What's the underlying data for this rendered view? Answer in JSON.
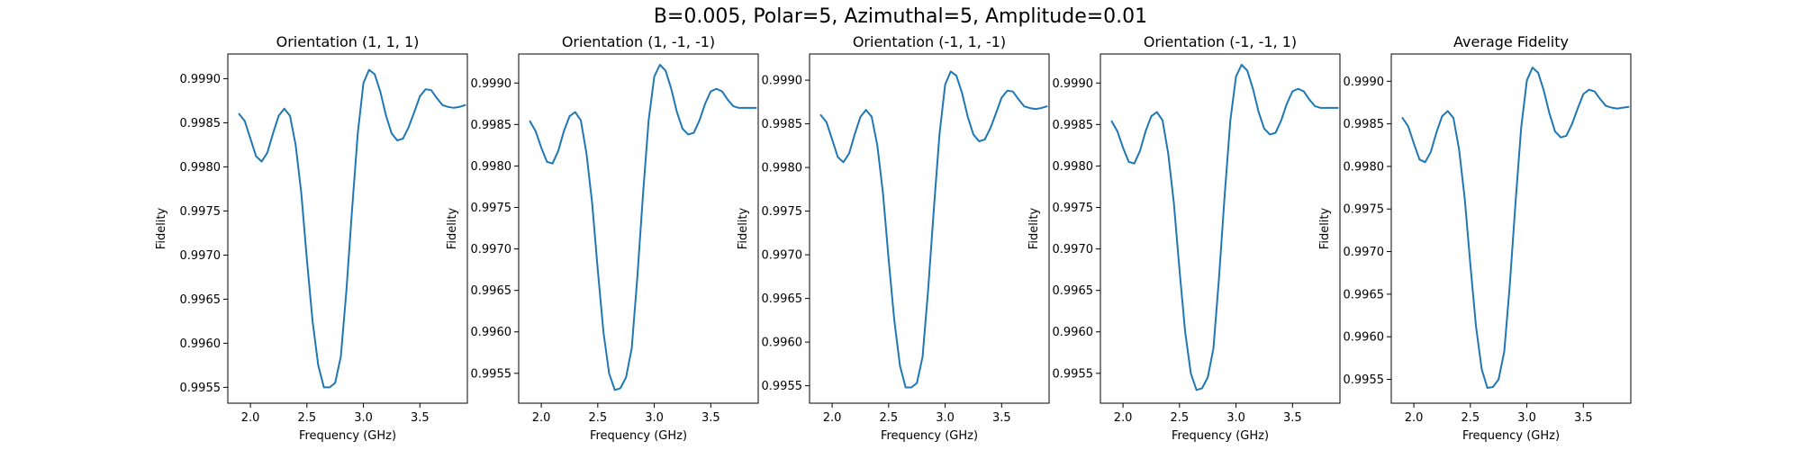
{
  "figure": {
    "suptitle": "B=0.005, Polar=5, Azimuthal=5, Amplitude=0.01",
    "line_color": "#1f77b4"
  },
  "chart_data": [
    {
      "type": "line",
      "title": "Orientation (1, 1, 1)",
      "xlabel": "Frequency (GHz)",
      "ylabel": "Fidelity",
      "xlim": [
        1.8,
        3.92
      ],
      "ylim": [
        0.99532,
        0.99928
      ],
      "xticks": [
        "2.0",
        "2.5",
        "3.0",
        "3.5"
      ],
      "yticks": [
        "0.9955",
        "0.9960",
        "0.9965",
        "0.9970",
        "0.9975",
        "0.9980",
        "0.9985",
        "0.9990"
      ],
      "grid": false,
      "series": [
        {
          "x": [
            1.9,
            1.95,
            2.0,
            2.05,
            2.1,
            2.15,
            2.2,
            2.25,
            2.3,
            2.35,
            2.4,
            2.45,
            2.5,
            2.55,
            2.6,
            2.65,
            2.7,
            2.75,
            2.8,
            2.85,
            2.9,
            2.95,
            3.0,
            3.05,
            3.1,
            3.15,
            3.2,
            3.25,
            3.3,
            3.35,
            3.4,
            3.45,
            3.5,
            3.55,
            3.6,
            3.65,
            3.7,
            3.75,
            3.8,
            3.85,
            3.9
          ],
          "y": [
            0.9986,
            0.99852,
            0.99832,
            0.99812,
            0.99806,
            0.99816,
            0.99838,
            0.99858,
            0.99866,
            0.99858,
            0.99825,
            0.9977,
            0.99695,
            0.99625,
            0.99575,
            0.9955,
            0.9955,
            0.99555,
            0.99585,
            0.9966,
            0.99752,
            0.99838,
            0.99895,
            0.9991,
            0.99905,
            0.99885,
            0.99858,
            0.99838,
            0.9983,
            0.99832,
            0.99845,
            0.99862,
            0.9988,
            0.99888,
            0.99887,
            0.99878,
            0.9987,
            0.99868,
            0.99867,
            0.99868,
            0.9987
          ]
        }
      ]
    },
    {
      "type": "line",
      "title": "Orientation (1, -1, -1)",
      "xlabel": "Frequency (GHz)",
      "ylabel": "Fidelity",
      "xlim": [
        1.8,
        3.92
      ],
      "ylim": [
        0.99514,
        0.99935
      ],
      "xticks": [
        "2.0",
        "2.5",
        "3.0",
        "3.5"
      ],
      "yticks": [
        "0.9955",
        "0.9960",
        "0.9965",
        "0.9970",
        "0.9975",
        "0.9980",
        "0.9985",
        "0.9990"
      ],
      "grid": false,
      "series": [
        {
          "x": [
            1.9,
            1.95,
            2.0,
            2.05,
            2.1,
            2.15,
            2.2,
            2.25,
            2.3,
            2.35,
            2.4,
            2.45,
            2.5,
            2.55,
            2.6,
            2.65,
            2.7,
            2.75,
            2.8,
            2.85,
            2.9,
            2.95,
            3.0,
            3.05,
            3.1,
            3.15,
            3.2,
            3.25,
            3.3,
            3.35,
            3.4,
            3.45,
            3.5,
            3.55,
            3.6,
            3.65,
            3.7,
            3.75,
            3.8,
            3.85,
            3.9
          ],
          "y": [
            0.99854,
            0.99842,
            0.99822,
            0.99805,
            0.99803,
            0.99818,
            0.99842,
            0.9986,
            0.99865,
            0.99855,
            0.99815,
            0.99755,
            0.99675,
            0.996,
            0.9955,
            0.9953,
            0.99532,
            0.99545,
            0.9958,
            0.99665,
            0.99765,
            0.99855,
            0.99908,
            0.99922,
            0.99915,
            0.99893,
            0.99865,
            0.99845,
            0.99838,
            0.9984,
            0.99855,
            0.99875,
            0.9989,
            0.99893,
            0.9989,
            0.9988,
            0.99872,
            0.9987,
            0.9987,
            0.9987,
            0.9987
          ]
        }
      ]
    },
    {
      "type": "line",
      "title": "Orientation (-1, 1, -1)",
      "xlabel": "Frequency (GHz)",
      "ylabel": "Fidelity",
      "xlim": [
        1.8,
        3.92
      ],
      "ylim": [
        0.9953,
        0.9993
      ],
      "xticks": [
        "2.0",
        "2.5",
        "3.0",
        "3.5"
      ],
      "yticks": [
        "0.9955",
        "0.9960",
        "0.9965",
        "0.9970",
        "0.9975",
        "0.9980",
        "0.9985",
        "0.9990"
      ],
      "grid": false,
      "series": [
        {
          "x": [
            1.9,
            1.95,
            2.0,
            2.05,
            2.1,
            2.15,
            2.2,
            2.25,
            2.3,
            2.35,
            2.4,
            2.45,
            2.5,
            2.55,
            2.6,
            2.65,
            2.7,
            2.75,
            2.8,
            2.85,
            2.9,
            2.95,
            3.0,
            3.05,
            3.1,
            3.15,
            3.2,
            3.25,
            3.3,
            3.35,
            3.4,
            3.45,
            3.5,
            3.55,
            3.6,
            3.65,
            3.7,
            3.75,
            3.8,
            3.85,
            3.9
          ],
          "y": [
            0.9986,
            0.99852,
            0.99832,
            0.99812,
            0.99806,
            0.99816,
            0.99838,
            0.99858,
            0.99866,
            0.99858,
            0.99825,
            0.9977,
            0.99695,
            0.99625,
            0.99573,
            0.99548,
            0.99548,
            0.99553,
            0.99583,
            0.9966,
            0.99752,
            0.99838,
            0.99895,
            0.9991,
            0.99905,
            0.99885,
            0.99858,
            0.99838,
            0.9983,
            0.99832,
            0.99845,
            0.99862,
            0.9988,
            0.99888,
            0.99887,
            0.99878,
            0.9987,
            0.99868,
            0.99867,
            0.99868,
            0.9987
          ]
        }
      ]
    },
    {
      "type": "line",
      "title": "Orientation (-1, -1, 1)",
      "xlabel": "Frequency (GHz)",
      "ylabel": "Fidelity",
      "xlim": [
        1.8,
        3.92
      ],
      "ylim": [
        0.99514,
        0.99935
      ],
      "xticks": [
        "2.0",
        "2.5",
        "3.0",
        "3.5"
      ],
      "yticks": [
        "0.9955",
        "0.9960",
        "0.9965",
        "0.9970",
        "0.9975",
        "0.9980",
        "0.9985",
        "0.9990"
      ],
      "grid": false,
      "series": [
        {
          "x": [
            1.9,
            1.95,
            2.0,
            2.05,
            2.1,
            2.15,
            2.2,
            2.25,
            2.3,
            2.35,
            2.4,
            2.45,
            2.5,
            2.55,
            2.6,
            2.65,
            2.7,
            2.75,
            2.8,
            2.85,
            2.9,
            2.95,
            3.0,
            3.05,
            3.1,
            3.15,
            3.2,
            3.25,
            3.3,
            3.35,
            3.4,
            3.45,
            3.5,
            3.55,
            3.6,
            3.65,
            3.7,
            3.75,
            3.8,
            3.85,
            3.9
          ],
          "y": [
            0.99854,
            0.99842,
            0.99822,
            0.99805,
            0.99803,
            0.99818,
            0.99842,
            0.9986,
            0.99865,
            0.99855,
            0.99815,
            0.99755,
            0.99675,
            0.996,
            0.9955,
            0.9953,
            0.99532,
            0.99545,
            0.9958,
            0.99665,
            0.99765,
            0.99855,
            0.99908,
            0.99922,
            0.99915,
            0.99893,
            0.99865,
            0.99845,
            0.99838,
            0.9984,
            0.99855,
            0.99875,
            0.9989,
            0.99893,
            0.9989,
            0.9988,
            0.99872,
            0.9987,
            0.9987,
            0.9987,
            0.9987
          ]
        }
      ]
    },
    {
      "type": "line",
      "title": "Average Fidelity",
      "xlabel": "Frequency (GHz)",
      "ylabel": "Fidelity",
      "xlim": [
        1.8,
        3.92
      ],
      "ylim": [
        0.99522,
        0.99932
      ],
      "xticks": [
        "2.0",
        "2.5",
        "3.0",
        "3.5"
      ],
      "yticks": [
        "0.9955",
        "0.9960",
        "0.9965",
        "0.9970",
        "0.9975",
        "0.9980",
        "0.9985",
        "0.9990"
      ],
      "grid": false,
      "series": [
        {
          "x": [
            1.9,
            1.95,
            2.0,
            2.05,
            2.1,
            2.15,
            2.2,
            2.25,
            2.3,
            2.35,
            2.4,
            2.45,
            2.5,
            2.55,
            2.6,
            2.65,
            2.7,
            2.75,
            2.8,
            2.85,
            2.9,
            2.95,
            3.0,
            3.05,
            3.1,
            3.15,
            3.2,
            3.25,
            3.3,
            3.35,
            3.4,
            3.45,
            3.5,
            3.55,
            3.6,
            3.65,
            3.7,
            3.75,
            3.8,
            3.85,
            3.9
          ],
          "y": [
            0.99857,
            0.99847,
            0.99827,
            0.99808,
            0.99805,
            0.99817,
            0.9984,
            0.99859,
            0.99865,
            0.99857,
            0.9982,
            0.99762,
            0.99685,
            0.99612,
            0.99562,
            0.9954,
            0.99541,
            0.9955,
            0.99583,
            0.99662,
            0.99758,
            0.99846,
            0.99901,
            0.99916,
            0.9991,
            0.99889,
            0.99862,
            0.99841,
            0.99834,
            0.99836,
            0.9985,
            0.99868,
            0.99885,
            0.9989,
            0.99888,
            0.99879,
            0.99871,
            0.99869,
            0.99868,
            0.99869,
            0.9987
          ]
        }
      ]
    }
  ]
}
